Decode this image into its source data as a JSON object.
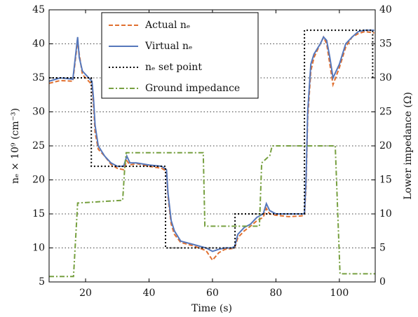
{
  "chart_data": {
    "type": "line",
    "xlabel": "Time (s)",
    "ylabel": "nₑ × 10⁹ (cm⁻³)",
    "y2label": "Lower impedance (Ω)",
    "xlim": [
      8.5,
      111.3
    ],
    "xticks": [
      20,
      40,
      60,
      80,
      100
    ],
    "ylim": [
      5,
      45
    ],
    "yticks": [
      5,
      10,
      15,
      20,
      25,
      30,
      35,
      40,
      45
    ],
    "y2lim": [
      0,
      40
    ],
    "y2ticks": [
      0,
      5,
      10,
      15,
      20,
      25,
      30,
      35,
      40
    ],
    "grid": true,
    "legend": "upper left",
    "series": [
      {
        "name": "Actual nₑ",
        "color": "#e07030",
        "dash": "6 3",
        "x": [
          8.5,
          12,
          16,
          17.5,
          18,
          19,
          20,
          21,
          22,
          22.5,
          23,
          24,
          26,
          28,
          30,
          32,
          33,
          34,
          36,
          40,
          44,
          45.5,
          46,
          47,
          48,
          50,
          54,
          58,
          60,
          62,
          64,
          66,
          67,
          68,
          70,
          72,
          74,
          76,
          77,
          78,
          80,
          84,
          88,
          89,
          89.5,
          90,
          91,
          92,
          94,
          95,
          96,
          97,
          98,
          100,
          102,
          104,
          106,
          108,
          111
        ],
        "values": [
          34.2,
          34.6,
          34.5,
          40.5,
          38.5,
          35.5,
          35,
          34.5,
          34,
          31,
          27,
          24.5,
          23.5,
          22.3,
          21.7,
          21.5,
          22.8,
          22.2,
          22.4,
          22,
          21.7,
          21.3,
          17.5,
          13.5,
          12,
          10.8,
          10.3,
          9.6,
          8.2,
          9.3,
          9.8,
          9.9,
          10,
          11.5,
          12.5,
          13.2,
          14,
          14.5,
          15.8,
          15,
          14.8,
          14.6,
          14.7,
          14.8,
          19,
          29,
          36,
          38,
          40,
          41,
          40,
          37,
          34,
          36.5,
          39.5,
          41,
          41.5,
          41.8,
          41.6
        ]
      },
      {
        "name": "Virtual nₑ",
        "color": "#5577bb",
        "dash": "",
        "x": [
          8.5,
          12,
          16,
          17.5,
          18,
          19,
          20,
          21,
          22,
          22.5,
          23,
          24,
          26,
          28,
          30,
          32,
          33,
          34,
          36,
          40,
          44,
          45.5,
          46,
          47,
          48,
          50,
          54,
          58,
          60,
          62,
          64,
          66,
          67,
          68,
          70,
          72,
          74,
          76,
          77,
          78,
          80,
          84,
          88,
          89,
          89.5,
          90,
          91,
          92,
          94,
          95,
          96,
          97,
          98,
          100,
          102,
          104,
          106,
          108,
          111
        ],
        "values": [
          34.5,
          35,
          34.8,
          41,
          38,
          36,
          35.5,
          35,
          34.5,
          32,
          28,
          25,
          23.5,
          22.5,
          22,
          22,
          23.5,
          22.5,
          22.5,
          22.2,
          22,
          21.5,
          18,
          14,
          12.5,
          11,
          10.5,
          10,
          9.5,
          9.8,
          10,
          10,
          10.2,
          12,
          13,
          13.5,
          14.5,
          15,
          16.5,
          15.5,
          15,
          15,
          15,
          15,
          20,
          30,
          37,
          38.5,
          40,
          41,
          40.5,
          38,
          35,
          37,
          40,
          41,
          41.8,
          42,
          42
        ]
      },
      {
        "name": "nₑ set point",
        "color": "#000000",
        "dash": "2 3",
        "x": [
          8.5,
          21.8,
          21.8,
          45.2,
          45.2,
          67.1,
          67.1,
          89,
          89,
          110.5,
          110.5
        ],
        "values": [
          35,
          35,
          22,
          22,
          10,
          10,
          15,
          15,
          42,
          42,
          35
        ]
      },
      {
        "name": "Ground impedance",
        "color": "#77a040",
        "dash": "7 3 2 3",
        "axis": "y2",
        "x": [
          8.5,
          16.2,
          17.5,
          31.7,
          32.3,
          32.8,
          57.1,
          57.6,
          74.8,
          75.5,
          78.1,
          78.8,
          98.7,
          100.2,
          111.3
        ],
        "values": [
          0.8,
          0.8,
          11.6,
          12,
          16.5,
          19,
          19,
          8.2,
          8.2,
          17.5,
          18.6,
          20,
          20,
          1.2,
          1.2
        ]
      }
    ]
  }
}
